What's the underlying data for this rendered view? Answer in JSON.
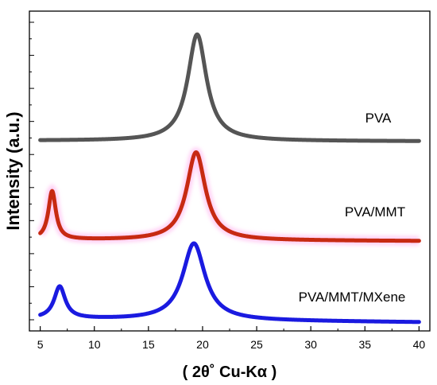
{
  "chart_data": {
    "type": "line",
    "xlabel": "( 2θ˚ Cu-Kα )",
    "ylabel": "Intensity (a.u.)",
    "xlim": [
      4,
      41
    ],
    "xticks": [
      5,
      10,
      15,
      20,
      25,
      30,
      35,
      40
    ],
    "ylim": [
      0,
      1
    ],
    "yticks_labeled": false,
    "y_minor_ticks": 19,
    "grid": false,
    "legend": "none",
    "series": [
      {
        "name": "PVA",
        "color": "#555555",
        "offset": 0.595,
        "baseline": 0,
        "baseline_end": -0.002,
        "peaks": [
          {
            "center": 19.5,
            "height": 0.333,
            "width": 1.05
          }
        ]
      },
      {
        "name": "PVA/MMT",
        "color": "#c72a12",
        "glow": "#ff9be8",
        "offset": 0.285,
        "baseline": 0.0,
        "baseline_end": -0.004,
        "peaks": [
          {
            "center": 6.1,
            "height": 0.151,
            "width": 0.42
          },
          {
            "center": 19.4,
            "height": 0.275,
            "width": 1.05
          }
        ]
      },
      {
        "name": "PVA/MMT/MXene",
        "color": "#1a1ae0",
        "offset": 0.03,
        "baseline": 0.008,
        "baseline_end": -0.003,
        "peaks": [
          {
            "center": 6.8,
            "height": 0.1,
            "width": 0.62
          },
          {
            "center": 19.2,
            "height": 0.24,
            "width": 1.25
          }
        ]
      }
    ]
  }
}
